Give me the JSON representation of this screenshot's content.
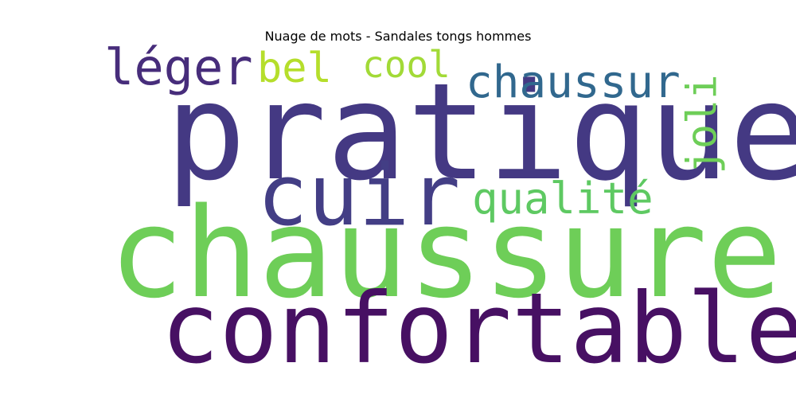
{
  "chart_data": {
    "type": "wordcloud",
    "title": "Nuage de mots - Sandales tongs hommes",
    "words": [
      {
        "text": "pratique",
        "weight": 1.0,
        "color": "#443983"
      },
      {
        "text": "chaussure",
        "weight": 0.93,
        "color": "#6ece58"
      },
      {
        "text": "confortable",
        "weight": 0.73,
        "color": "#471063"
      },
      {
        "text": "cuir",
        "weight": 0.63,
        "color": "#433e85"
      },
      {
        "text": "chaussur",
        "weight": 0.33,
        "color": "#31688e"
      },
      {
        "text": "léger",
        "weight": 0.37,
        "color": "#472d7b"
      },
      {
        "text": "qualité",
        "weight": 0.32,
        "color": "#5ec962"
      },
      {
        "text": "bel",
        "weight": 0.31,
        "color": "#b5de2b"
      },
      {
        "text": "cool",
        "weight": 0.27,
        "color": "#a2da37"
      },
      {
        "text": "joli",
        "weight": 0.31,
        "color": "#6ece58",
        "rotated": true
      }
    ]
  }
}
